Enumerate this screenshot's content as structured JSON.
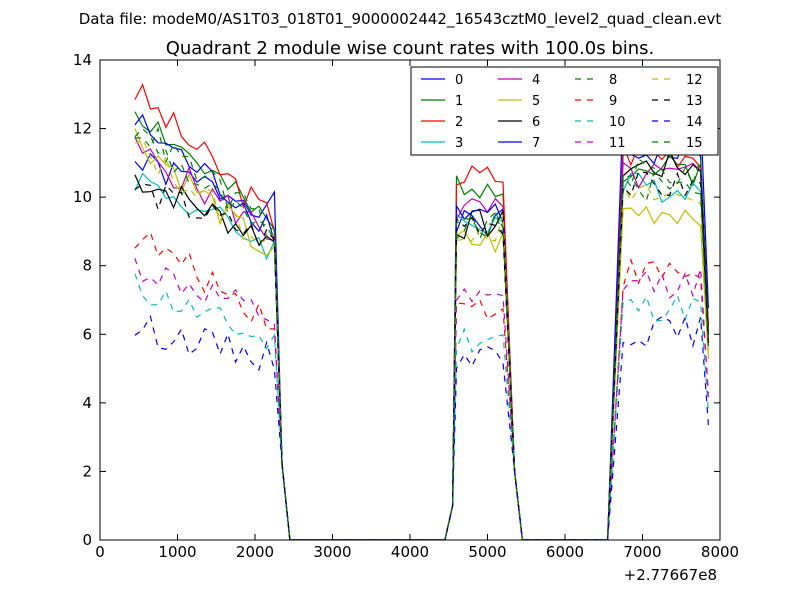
{
  "chart_data": {
    "type": "line",
    "suptitle": "Data file: modeM0/AS1T03_018T01_9000002442_16543cztM0_level2_quad_clean.evt",
    "title": "Quadrant 2 module wise count rates with 100.0s bins.",
    "xlabel": "",
    "ylabel": "",
    "xlim": [
      0,
      8000
    ],
    "ylim": [
      0,
      14
    ],
    "x_offset_label": "+2.77667e8",
    "xticks": [
      0,
      1000,
      2000,
      3000,
      4000,
      5000,
      6000,
      7000,
      8000
    ],
    "yticks": [
      0,
      2,
      4,
      6,
      8,
      10,
      12,
      14
    ],
    "grid": false,
    "legend_position": "top-right",
    "legend_columns": 4,
    "segments": [
      {
        "t0": 450,
        "t1": 2250,
        "fall_to": 2450
      },
      {
        "t0": 4600,
        "t1": 5250,
        "rise_from": 4450,
        "fall_to": 5450
      },
      {
        "t0": 6750,
        "t1": 7750,
        "rise_from": 6550,
        "fall_to": 7850
      }
    ],
    "series": [
      {
        "name": "0",
        "color": "#0000ff",
        "style": "solid",
        "levels": [
          11.0,
          9.7,
          9.2,
          11.3
        ]
      },
      {
        "name": "1",
        "color": "#008000",
        "style": "solid",
        "levels": [
          12.6,
          9.0,
          10.4,
          10.8
        ]
      },
      {
        "name": "2",
        "color": "#ff0000",
        "style": "solid",
        "levels": [
          13.1,
          9.3,
          10.6,
          11.3
        ]
      },
      {
        "name": "3",
        "color": "#00bfbf",
        "style": "solid",
        "levels": [
          10.6,
          8.5,
          9.3,
          10.3
        ]
      },
      {
        "name": "4",
        "color": "#bf00bf",
        "style": "solid",
        "levels": [
          11.4,
          8.9,
          9.6,
          10.6
        ]
      },
      {
        "name": "5",
        "color": "#bfbf00",
        "style": "solid",
        "levels": [
          11.8,
          8.2,
          8.7,
          9.6
        ]
      },
      {
        "name": "6",
        "color": "#000000",
        "style": "solid",
        "levels": [
          10.6,
          8.7,
          9.2,
          10.9
        ]
      },
      {
        "name": "7",
        "color": "#0000ff",
        "style": "solid",
        "levels": [
          12.2,
          9.1,
          9.6,
          12.3
        ]
      },
      {
        "name": "8",
        "color": "#008000",
        "style": "dashed",
        "levels": [
          12.0,
          8.6,
          9.1,
          10.7
        ]
      },
      {
        "name": "9",
        "color": "#ff0000",
        "style": "dashed",
        "levels": [
          8.9,
          6.4,
          6.8,
          7.8
        ]
      },
      {
        "name": "10",
        "color": "#00bfbf",
        "style": "dashed",
        "levels": [
          7.4,
          5.7,
          5.9,
          6.8
        ]
      },
      {
        "name": "11",
        "color": "#bf00bf",
        "style": "dashed",
        "levels": [
          8.0,
          6.4,
          6.9,
          7.5
        ]
      },
      {
        "name": "12",
        "color": "#bfbf00",
        "style": "dashed",
        "levels": [
          11.5,
          8.5,
          9.1,
          10.0
        ]
      },
      {
        "name": "13",
        "color": "#000000",
        "style": "dashed",
        "levels": [
          10.3,
          8.7,
          9.3,
          10.3
        ]
      },
      {
        "name": "14",
        "color": "#0000ff",
        "style": "dashed",
        "levels": [
          6.2,
          5.3,
          5.4,
          6.1
        ]
      },
      {
        "name": "15",
        "color": "#008000",
        "style": "dashed",
        "levels": [
          12.1,
          9.0,
          9.2,
          10.3
        ]
      }
    ]
  }
}
